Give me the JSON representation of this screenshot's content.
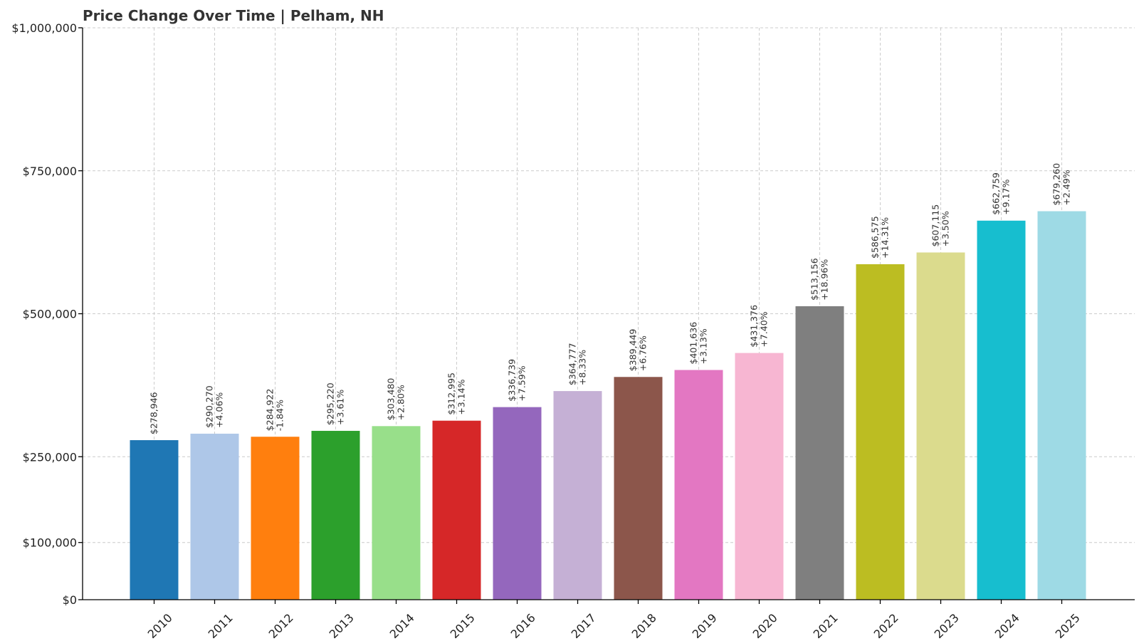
{
  "chart_data": {
    "type": "bar",
    "title": "Price Change Over Time | Pelham, NH",
    "xlabel": "",
    "ylabel": "",
    "categories": [
      "2010",
      "2011",
      "2012",
      "2013",
      "2014",
      "2015",
      "2016",
      "2017",
      "2018",
      "2019",
      "2020",
      "2021",
      "2022",
      "2023",
      "2024",
      "2025"
    ],
    "values": [
      278946,
      290270,
      284922,
      295220,
      303480,
      312995,
      336739,
      364777,
      389449,
      401636,
      431376,
      513156,
      586575,
      607115,
      662759,
      679260
    ],
    "value_labels": [
      "$278,946",
      "$290,270",
      "$284,922",
      "$295,220",
      "$303,480",
      "$312,995",
      "$336,739",
      "$364,777",
      "$389,449",
      "$401,636",
      "$431,376",
      "$513,156",
      "$586,575",
      "$607,115",
      "$662,759",
      "$679,260"
    ],
    "change_labels": [
      "",
      "+4.06%",
      "-1.84%",
      "+3.61%",
      "+2.80%",
      "+3.14%",
      "+7.59%",
      "+8.33%",
      "+6.76%",
      "+3.13%",
      "+7.40%",
      "+18.96%",
      "+14.31%",
      "+3.50%",
      "+9.17%",
      "+2.49%"
    ],
    "colors": [
      "#1f77b4",
      "#aec7e8",
      "#ff7f0e",
      "#2ca02c",
      "#98df8a",
      "#d62728",
      "#9467bd",
      "#c5b0d5",
      "#8c564b",
      "#e377c2",
      "#f7b6d2",
      "#7f7f7f",
      "#bcbd22",
      "#dbdb8d",
      "#17becf",
      "#9edae5"
    ],
    "yticks": [
      0,
      100000,
      250000,
      500000,
      750000,
      1000000
    ],
    "ytick_labels": [
      "$0",
      "$100,000",
      "$250,000",
      "$500,000",
      "$750,000",
      "$1,000,000"
    ],
    "ylim": [
      0,
      1000000
    ],
    "grid": true
  }
}
